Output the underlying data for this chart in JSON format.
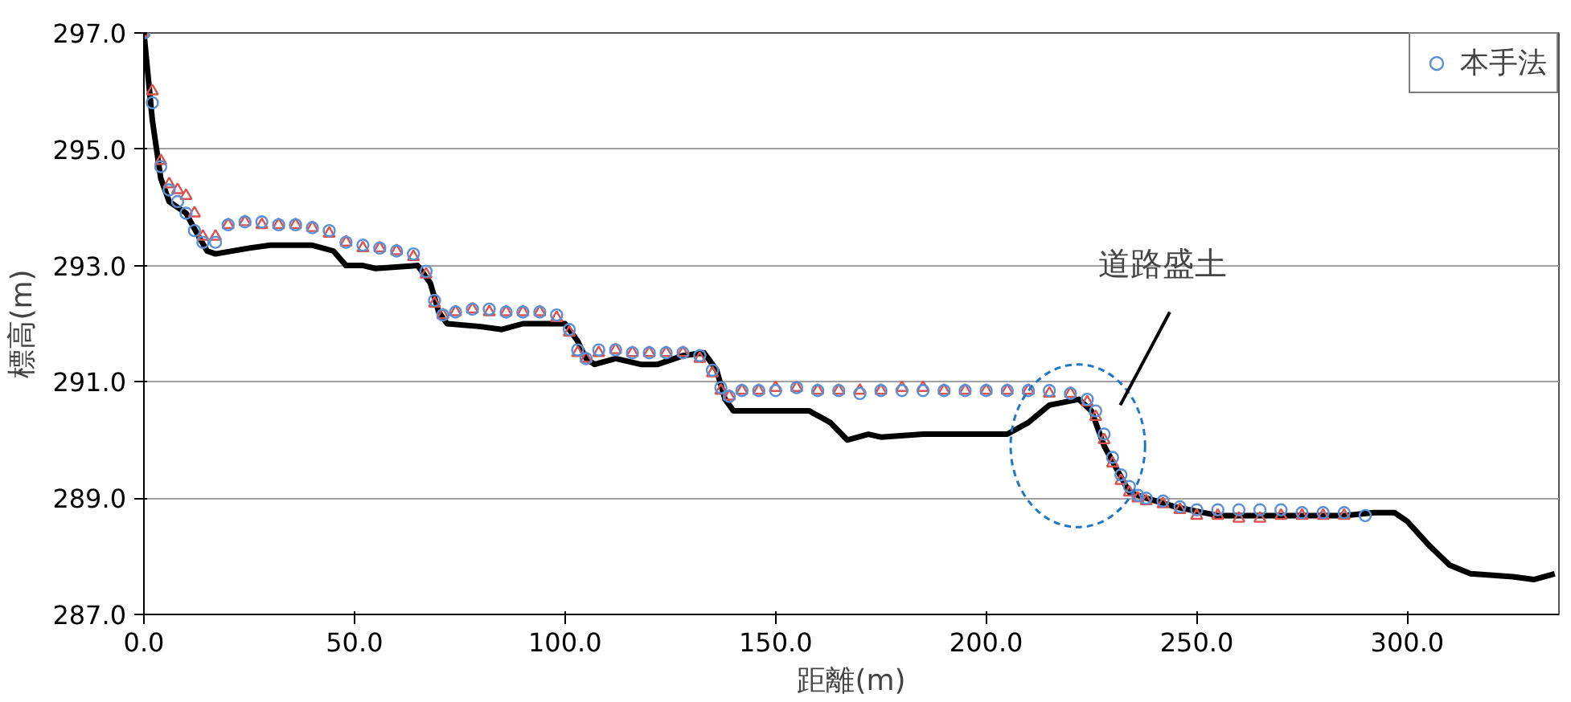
{
  "chart_data": {
    "type": "scatter",
    "xlabel": "距離(m)",
    "ylabel": "標高(m)",
    "xlim": [
      0,
      336
    ],
    "ylim": [
      287,
      297
    ],
    "xticks": [
      {
        "value": 0,
        "label": "0.0"
      },
      {
        "value": 50,
        "label": "50.0"
      },
      {
        "value": 100,
        "label": "100.0"
      },
      {
        "value": 150,
        "label": "150.0"
      },
      {
        "value": 200,
        "label": "200.0"
      },
      {
        "value": 250,
        "label": "250.0"
      },
      {
        "value": 300,
        "label": "300.0"
      }
    ],
    "yticks": [
      {
        "value": 287,
        "label": "287.0"
      },
      {
        "value": 289,
        "label": "289.0"
      },
      {
        "value": 291,
        "label": "291.0"
      },
      {
        "value": 293,
        "label": "293.0"
      },
      {
        "value": 295,
        "label": "295.0"
      },
      {
        "value": 297,
        "label": "297.0"
      }
    ],
    "grid": "y",
    "legend": "top right",
    "annotations": [
      "道路盛土"
    ],
    "series": [
      {
        "type": "line",
        "color": "#000000",
        "line_style": "solid",
        "x": [
          0,
          2,
          4,
          6,
          10,
          13,
          15,
          17,
          25,
          30,
          40,
          45,
          48,
          52,
          55,
          65,
          68,
          70,
          72,
          80,
          85,
          90,
          100,
          103,
          105,
          107,
          112,
          118,
          122,
          128,
          133,
          136,
          138,
          140,
          150,
          158,
          163,
          167,
          172,
          175,
          185,
          205,
          210,
          215,
          222,
          225,
          228,
          231,
          234,
          238,
          245,
          255,
          270,
          285,
          292,
          297,
          300,
          305,
          310,
          315,
          325,
          330,
          335
        ],
        "values": [
          297,
          295.5,
          294.5,
          294.1,
          293.9,
          293.5,
          293.25,
          293.2,
          293.3,
          293.35,
          293.35,
          293.25,
          293.0,
          293.0,
          292.95,
          293.0,
          292.7,
          292.2,
          292.0,
          291.95,
          291.9,
          292.0,
          292.0,
          291.7,
          291.4,
          291.3,
          291.4,
          291.3,
          291.3,
          291.45,
          291.5,
          291.2,
          290.7,
          290.5,
          290.5,
          290.5,
          290.3,
          290.0,
          290.1,
          290.05,
          290.1,
          290.1,
          290.3,
          290.6,
          290.7,
          290.5,
          289.9,
          289.5,
          289.1,
          289.0,
          288.85,
          288.7,
          288.7,
          288.7,
          288.75,
          288.75,
          288.6,
          288.2,
          287.85,
          287.7,
          287.65,
          287.6,
          287.7
        ]
      },
      {
        "color": "#d9534f",
        "marker": "triangle",
        "x": [
          0,
          2,
          4,
          6,
          8,
          10,
          12,
          14,
          17,
          20,
          24,
          28,
          32,
          36,
          40,
          44,
          48,
          52,
          56,
          60,
          64,
          67,
          69,
          71,
          74,
          78,
          82,
          86,
          90,
          94,
          98,
          101,
          103,
          105,
          108,
          112,
          116,
          120,
          124,
          128,
          132,
          135,
          137,
          139,
          142,
          146,
          150,
          155,
          160,
          165,
          170,
          175,
          180,
          185,
          190,
          195,
          200,
          205,
          210,
          215,
          220,
          224,
          226,
          228,
          230,
          232,
          234,
          236,
          238,
          242,
          246,
          250,
          255,
          260,
          265,
          270,
          275,
          280,
          285
        ],
        "values": [
          297,
          296.0,
          294.8,
          294.4,
          294.3,
          294.2,
          293.9,
          293.5,
          293.5,
          293.7,
          293.75,
          293.7,
          293.7,
          293.7,
          293.65,
          293.55,
          293.4,
          293.3,
          293.3,
          293.25,
          293.15,
          292.85,
          292.35,
          292.15,
          292.2,
          292.25,
          292.2,
          292.2,
          292.2,
          292.2,
          292.1,
          291.85,
          291.5,
          291.4,
          291.5,
          291.55,
          291.5,
          291.5,
          291.5,
          291.5,
          291.4,
          291.15,
          290.85,
          290.75,
          290.85,
          290.85,
          290.9,
          290.9,
          290.85,
          290.85,
          290.85,
          290.85,
          290.9,
          290.9,
          290.85,
          290.85,
          290.85,
          290.85,
          290.85,
          290.8,
          290.8,
          290.65,
          290.4,
          290.0,
          289.6,
          289.3,
          289.1,
          289.0,
          288.95,
          288.9,
          288.8,
          288.7,
          288.7,
          288.65,
          288.65,
          288.7,
          288.7,
          288.7,
          288.7
        ]
      },
      {
        "name": "本手法",
        "color": "#5b8fd6",
        "marker": "circle",
        "x": [
          0,
          2,
          4,
          6,
          8,
          10,
          12,
          14,
          17,
          20,
          24,
          28,
          32,
          36,
          40,
          44,
          48,
          52,
          56,
          60,
          64,
          67,
          69,
          71,
          74,
          78,
          82,
          86,
          90,
          94,
          98,
          101,
          103,
          105,
          108,
          112,
          116,
          120,
          124,
          128,
          132,
          135,
          137,
          139,
          142,
          146,
          150,
          155,
          160,
          165,
          170,
          175,
          180,
          185,
          190,
          195,
          200,
          205,
          210,
          215,
          220,
          224,
          226,
          228,
          230,
          232,
          234,
          236,
          238,
          242,
          246,
          250,
          255,
          260,
          265,
          270,
          275,
          280,
          285,
          290
        ],
        "values": [
          297,
          295.8,
          294.7,
          294.3,
          294.1,
          293.9,
          293.6,
          293.4,
          293.4,
          293.7,
          293.75,
          293.75,
          293.7,
          293.7,
          293.65,
          293.6,
          293.4,
          293.35,
          293.3,
          293.25,
          293.2,
          292.9,
          292.4,
          292.15,
          292.2,
          292.25,
          292.25,
          292.2,
          292.2,
          292.2,
          292.15,
          291.9,
          291.55,
          291.4,
          291.55,
          291.55,
          291.5,
          291.5,
          291.5,
          291.5,
          291.45,
          291.2,
          290.9,
          290.75,
          290.85,
          290.85,
          290.85,
          290.9,
          290.85,
          290.85,
          290.8,
          290.85,
          290.85,
          290.85,
          290.85,
          290.85,
          290.85,
          290.85,
          290.85,
          290.85,
          290.8,
          290.7,
          290.5,
          290.1,
          289.7,
          289.4,
          289.2,
          289.05,
          289.0,
          288.95,
          288.85,
          288.8,
          288.8,
          288.8,
          288.8,
          288.8,
          288.75,
          288.75,
          288.75,
          288.7
        ]
      }
    ]
  }
}
